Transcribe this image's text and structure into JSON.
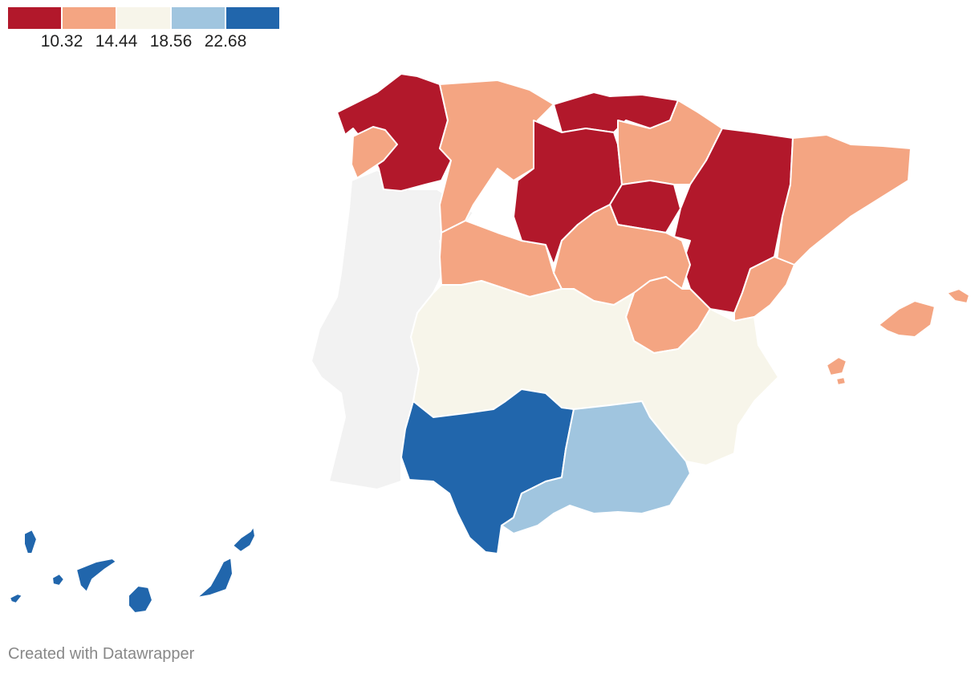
{
  "legend": {
    "colors": [
      "#b2182b",
      "#f4a582",
      "#f7f5ea",
      "#a0c5df",
      "#2166ac"
    ],
    "ticks": [
      "10.32",
      "14.44",
      "18.56",
      "22.68"
    ]
  },
  "colors": {
    "no_data": "#f2f2f2",
    "border": "#ffffff"
  },
  "footer": {
    "credit": "Created with Datawrapper"
  }
}
